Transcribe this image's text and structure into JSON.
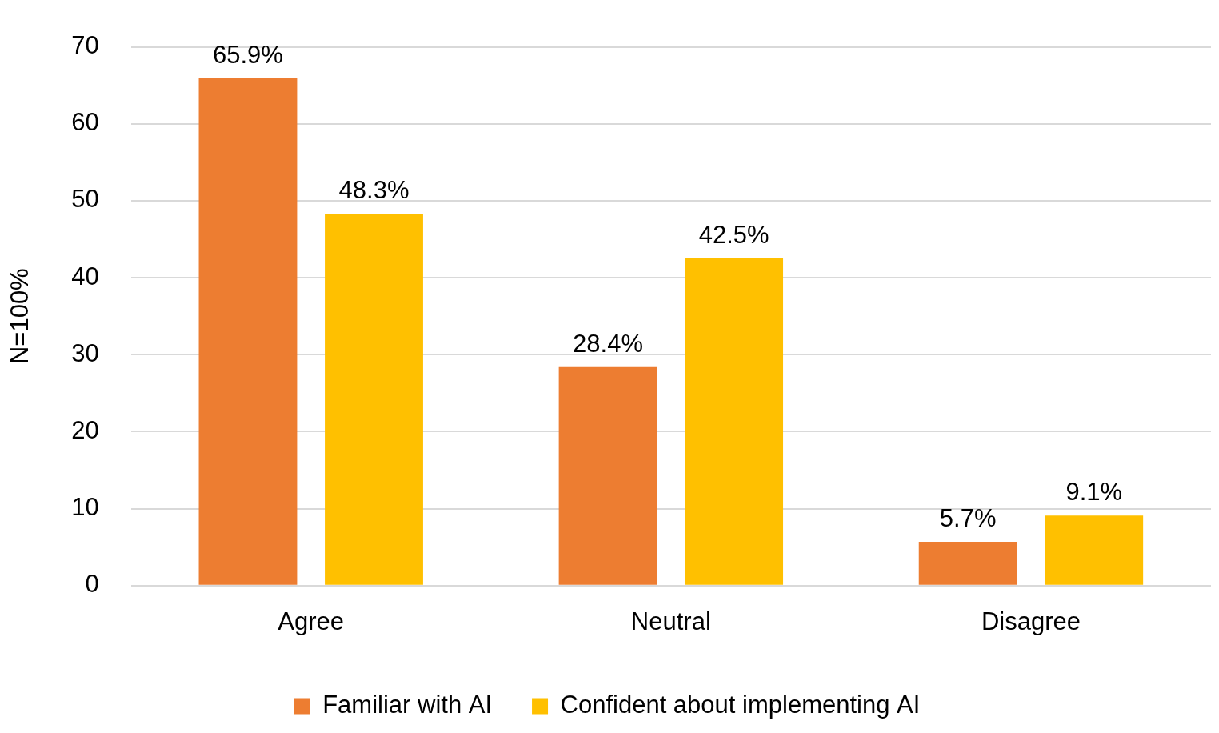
{
  "chart_data": {
    "type": "bar",
    "categories": [
      "Agree",
      "Neutral",
      "Disagree"
    ],
    "series": [
      {
        "name": "Familiar with AI",
        "color": "#ed7d31",
        "values": [
          65.9,
          28.4,
          5.7
        ],
        "value_labels": [
          "65.9%",
          "28.4%",
          "5.7%"
        ]
      },
      {
        "name": "Confident about implementing AI",
        "color": "#ffc000",
        "values": [
          48.3,
          42.5,
          9.1
        ],
        "value_labels": [
          "48.3%",
          "42.5%",
          "9.1%"
        ]
      }
    ],
    "y_label": "N=100%",
    "ylim": [
      0,
      70
    ],
    "yticks": [
      0,
      10,
      20,
      30,
      40,
      50,
      60,
      70
    ],
    "grid": true,
    "legend": "bottom",
    "data_labels": true
  }
}
